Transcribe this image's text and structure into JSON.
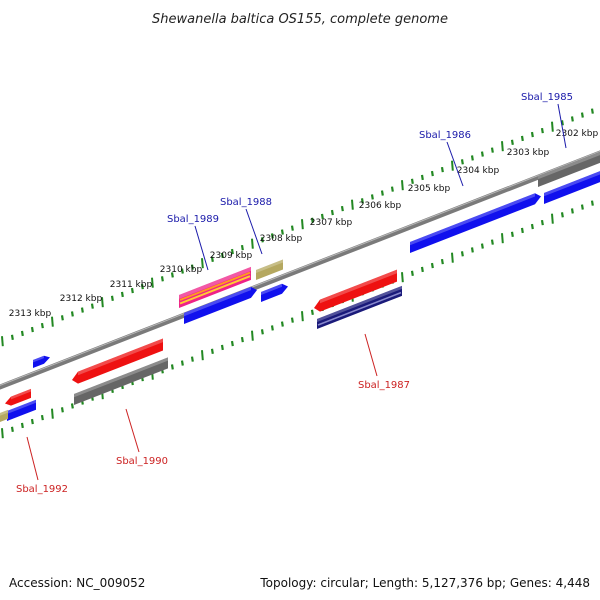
{
  "title": "Shewanella baltica OS155, complete genome",
  "footer": {
    "accession": "Accession: NC_009052",
    "summary": "Topology: circular; Length: 5,127,376 bp; Genes: 4,448"
  },
  "colors": {
    "scale_ticks": "#228822",
    "backbone": "#7a7a7a",
    "label_forward": "#1a1aaa",
    "label_reverse": "#cc2222",
    "gene_blue": "#1010ee",
    "gene_red": "#ee1111",
    "gene_gray": "#666666",
    "gene_navy": "#1a1a7a",
    "gene_olive": "#b5a860",
    "gene_magenta": "#ee2288"
  },
  "scale": {
    "tick_labels": [
      "2302 kbp",
      "2303 kbp",
      "2304 kbp",
      "2305 kbp",
      "2306 kbp",
      "2307 kbp",
      "2308 kbp",
      "2309 kbp",
      "2310 kbp",
      "2311 kbp",
      "2312 kbp",
      "2313 kbp"
    ]
  },
  "genes": [
    {
      "label": "Sbal_1985",
      "strand": "forward",
      "color": "gene_gray"
    },
    {
      "label": "Sbal_1986",
      "strand": "forward",
      "color": "gene_blue"
    },
    {
      "label": "Sbal_1987",
      "strand": "reverse",
      "color": "gene_red"
    },
    {
      "label": "Sbal_1988",
      "strand": "forward",
      "color": "gene_olive"
    },
    {
      "label": "Sbal_1989",
      "strand": "forward",
      "color": "gene_magenta"
    },
    {
      "label": "Sbal_1990",
      "strand": "reverse",
      "color": "gene_red"
    },
    {
      "label": "Sbal_1992",
      "strand": "reverse",
      "color": "gene_red"
    }
  ]
}
